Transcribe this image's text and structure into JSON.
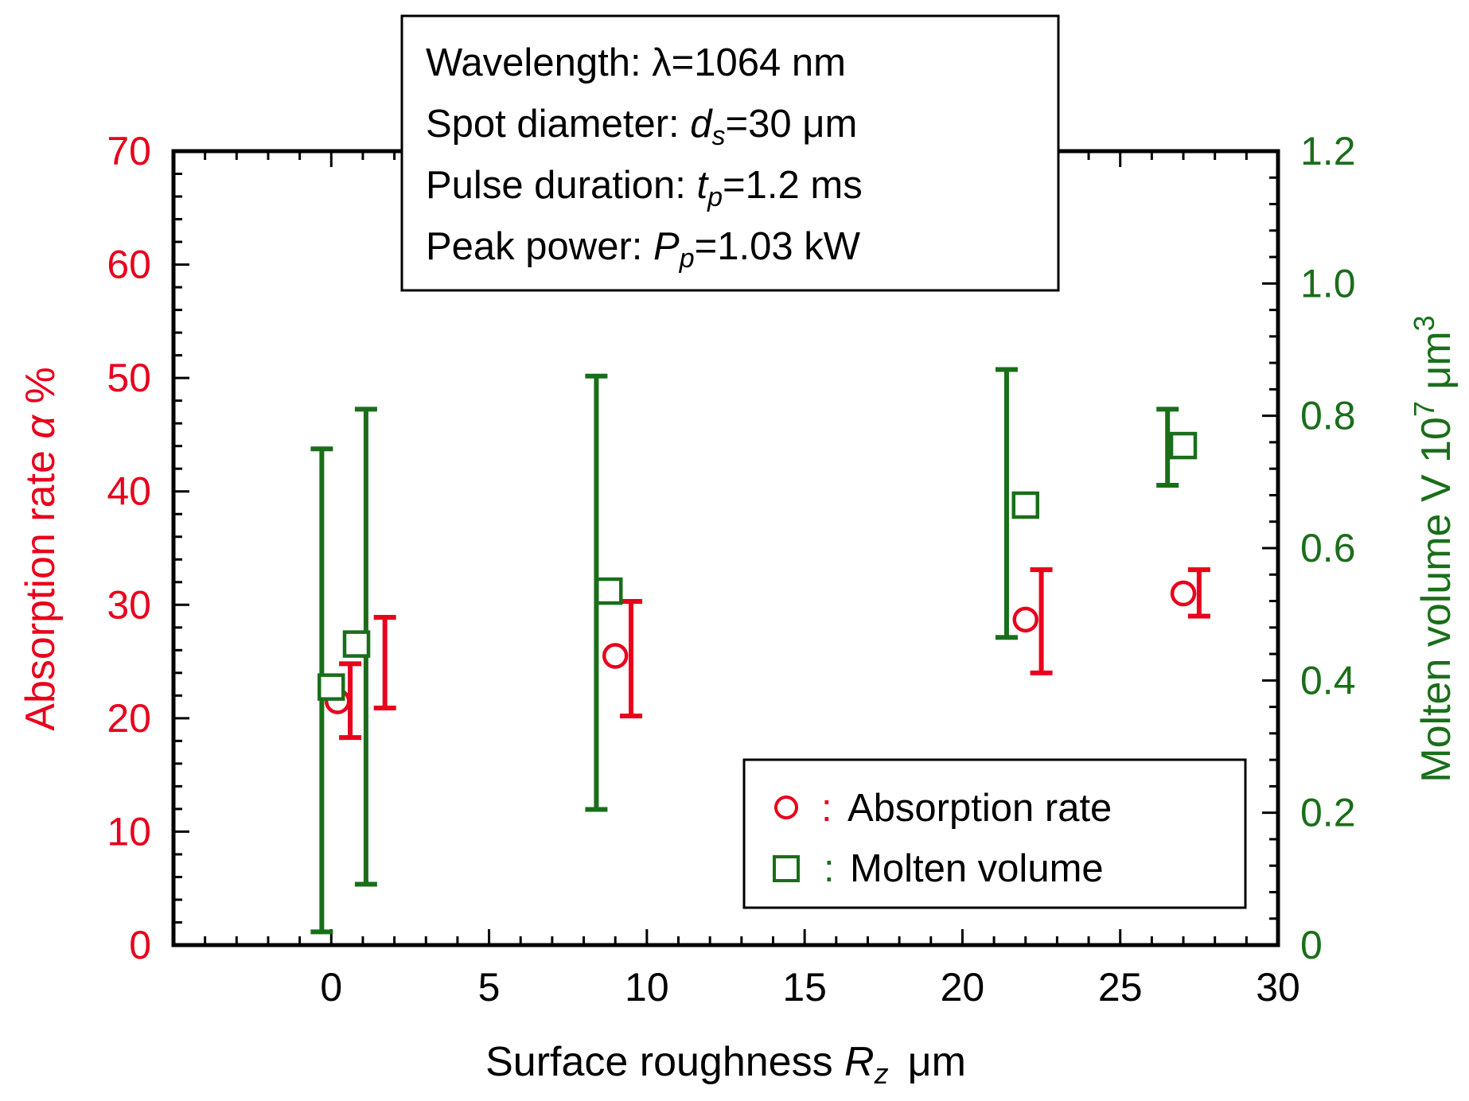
{
  "info_box": {
    "lines": [
      {
        "prefix": "Wavelength: ",
        "symbol": "λ",
        "sub": "",
        "suffix": "=1064 nm",
        "italic": false
      },
      {
        "prefix": "Spot diameter: ",
        "symbol": "d",
        "sub": "s",
        "suffix": "=30 μm",
        "italic": true
      },
      {
        "prefix": "Pulse duration: ",
        "symbol": "t",
        "sub": "p",
        "suffix": "=1.2 ms",
        "italic": true
      },
      {
        "prefix": "Peak power: ",
        "symbol": "P",
        "sub": "p",
        "suffix": "=1.03 kW",
        "italic": true
      }
    ]
  },
  "legend": {
    "absorption_sep": ":",
    "absorption_label": "Absorption rate",
    "molten_sep": ":",
    "molten_label": "Molten volume"
  },
  "colors": {
    "absorption": "#e8001c",
    "molten": "#1a6e1a",
    "axis": "#000000"
  },
  "chart_data": {
    "type": "scatter",
    "title": "",
    "xlabel_main": "Surface roughness ",
    "xlabel_symbol": "R",
    "xlabel_sub": "z",
    "xlabel_unit": "μm",
    "ylabel_left_main": "Absorption rate ",
    "ylabel_left_symbol": "α",
    "ylabel_left_unit": " %",
    "ylabel_right_main": "Molten volume V 10",
    "ylabel_right_exp": "7",
    "ylabel_right_unit": " μm",
    "ylabel_right_unit_exp": "3",
    "xlim": [
      -5,
      30
    ],
    "ylim_left": [
      0,
      70
    ],
    "ylim_right": [
      0,
      1.2
    ],
    "x_ticks": [
      0,
      5,
      10,
      15,
      20,
      25,
      30
    ],
    "y_left_ticks": [
      0,
      10,
      20,
      30,
      40,
      50,
      60,
      70
    ],
    "y_right_ticks": [
      0,
      0.2,
      0.4,
      0.6,
      0.8,
      1.0,
      1.2
    ],
    "x_tick_labels": [
      "0",
      "5",
      "10",
      "15",
      "20",
      "25",
      "30"
    ],
    "y_left_tick_labels": [
      "0",
      "10",
      "20",
      "30",
      "40",
      "50",
      "60",
      "70"
    ],
    "y_right_tick_labels": [
      "0",
      "0.2",
      "0.4",
      "0.6",
      "0.8",
      "1.0",
      "1.2"
    ],
    "series": [
      {
        "name": "Absorption rate",
        "axis": "left",
        "marker": "circle",
        "points": [
          {
            "x": 0.2,
            "y": 21.5,
            "ex": 0.6,
            "y_low": 18.3,
            "y_high": 24.8
          },
          {
            "x": 9.0,
            "y": 25.5,
            "ex": 9.5,
            "y_low": 20.2,
            "y_high": 30.3
          },
          {
            "x": 22.0,
            "y": 28.7,
            "ex": 22.5,
            "y_low": 24.0,
            "y_high": 33.1
          },
          {
            "x": 27.0,
            "y": 31.0,
            "ex": 27.5,
            "y_low": 29.0,
            "y_high": 33.1
          }
        ],
        "extra_errorbars": [
          {
            "x": 1.7,
            "y_low": 20.9,
            "y_high": 28.9
          }
        ]
      },
      {
        "name": "Molten volume",
        "axis": "right",
        "marker": "square",
        "points": [
          {
            "x": 0.0,
            "y": 0.39,
            "ex": -0.3,
            "y_low": 0.02,
            "y_high": 0.75
          },
          {
            "x": 0.8,
            "y": 0.455,
            "ex": 1.1,
            "y_low": 0.092,
            "y_high": 0.81
          },
          {
            "x": 8.8,
            "y": 0.535,
            "ex": 8.4,
            "y_low": 0.205,
            "y_high": 0.86
          },
          {
            "x": 22.0,
            "y": 0.665,
            "ex": 21.4,
            "y_low": 0.465,
            "y_high": 0.87
          },
          {
            "x": 27.0,
            "y": 0.755,
            "ex": 26.5,
            "y_low": 0.695,
            "y_high": 0.81
          }
        ]
      }
    ],
    "legend_position": "bottom-right",
    "grid": false
  }
}
